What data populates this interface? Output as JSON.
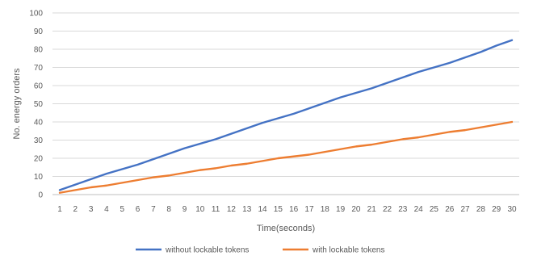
{
  "chart_data": {
    "type": "line",
    "title": "",
    "xlabel": "Time(seconds)",
    "ylabel": "No. energy orders",
    "ylim": [
      0,
      100
    ],
    "y_ticks": [
      0,
      10,
      20,
      30,
      40,
      50,
      60,
      70,
      80,
      90,
      100
    ],
    "grid": "horizontal",
    "legend_position": "bottom",
    "x": [
      1,
      2,
      3,
      4,
      5,
      6,
      7,
      8,
      9,
      10,
      11,
      12,
      13,
      14,
      15,
      16,
      17,
      18,
      19,
      20,
      21,
      22,
      23,
      24,
      25,
      26,
      27,
      28,
      29,
      30
    ],
    "series": [
      {
        "name": "without lockable tokens",
        "color": "#4472C4",
        "values": [
          2.5,
          5.5,
          8.5,
          11.5,
          14,
          16.5,
          19.5,
          22.5,
          25.5,
          28,
          30.5,
          33.5,
          36.5,
          39.5,
          42,
          44.5,
          47.5,
          50.5,
          53.5,
          56,
          58.5,
          61.5,
          64.5,
          67.5,
          70,
          72.5,
          75.5,
          78.5,
          82,
          85
        ]
      },
      {
        "name": "with lockable tokens",
        "color": "#ED7D31",
        "values": [
          1,
          2.5,
          4,
          5,
          6.5,
          8,
          9.5,
          10.5,
          12,
          13.5,
          14.5,
          16,
          17,
          18.5,
          20,
          21,
          22,
          23.5,
          25,
          26.5,
          27.5,
          29,
          30.5,
          31.5,
          33,
          34.5,
          35.5,
          37,
          38.5,
          40
        ]
      }
    ]
  }
}
